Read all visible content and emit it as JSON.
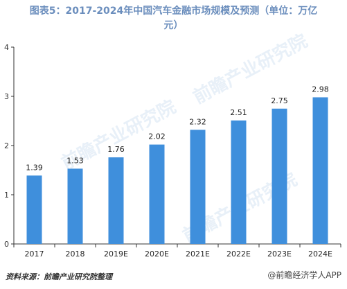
{
  "title_line1": "图表5：2017-2024年中国汽车金融市场规模及预测（单位：万亿",
  "title_line2": "元）",
  "source": "资料来源：前瞻产业研究院整理",
  "bottom_watermark": "@前瞻经济学人APP",
  "center_watermark": "前瞻产业研究院",
  "colors": {
    "bar": "#3f8fdc",
    "axis": "#333333",
    "title": "#6b8ebd"
  },
  "chart_data": {
    "type": "bar",
    "title": "图表5：2017-2024年中国汽车金融市场规模及预测（单位：万亿元）",
    "xlabel": "",
    "ylabel": "",
    "categories": [
      "2017",
      "2018",
      "2019E",
      "2020E",
      "2021E",
      "2022E",
      "2023E",
      "2024E"
    ],
    "values": [
      1.39,
      1.53,
      1.76,
      2.02,
      2.32,
      2.51,
      2.75,
      2.98
    ],
    "value_labels": [
      "1.39",
      "1.53",
      "1.76",
      "2.02",
      "2.32",
      "2.51",
      "2.75",
      "2.98"
    ],
    "ylim": [
      0,
      4
    ],
    "yticks": [
      "0",
      "1",
      "2",
      "3",
      "4"
    ],
    "grid": false,
    "legend": "none"
  }
}
